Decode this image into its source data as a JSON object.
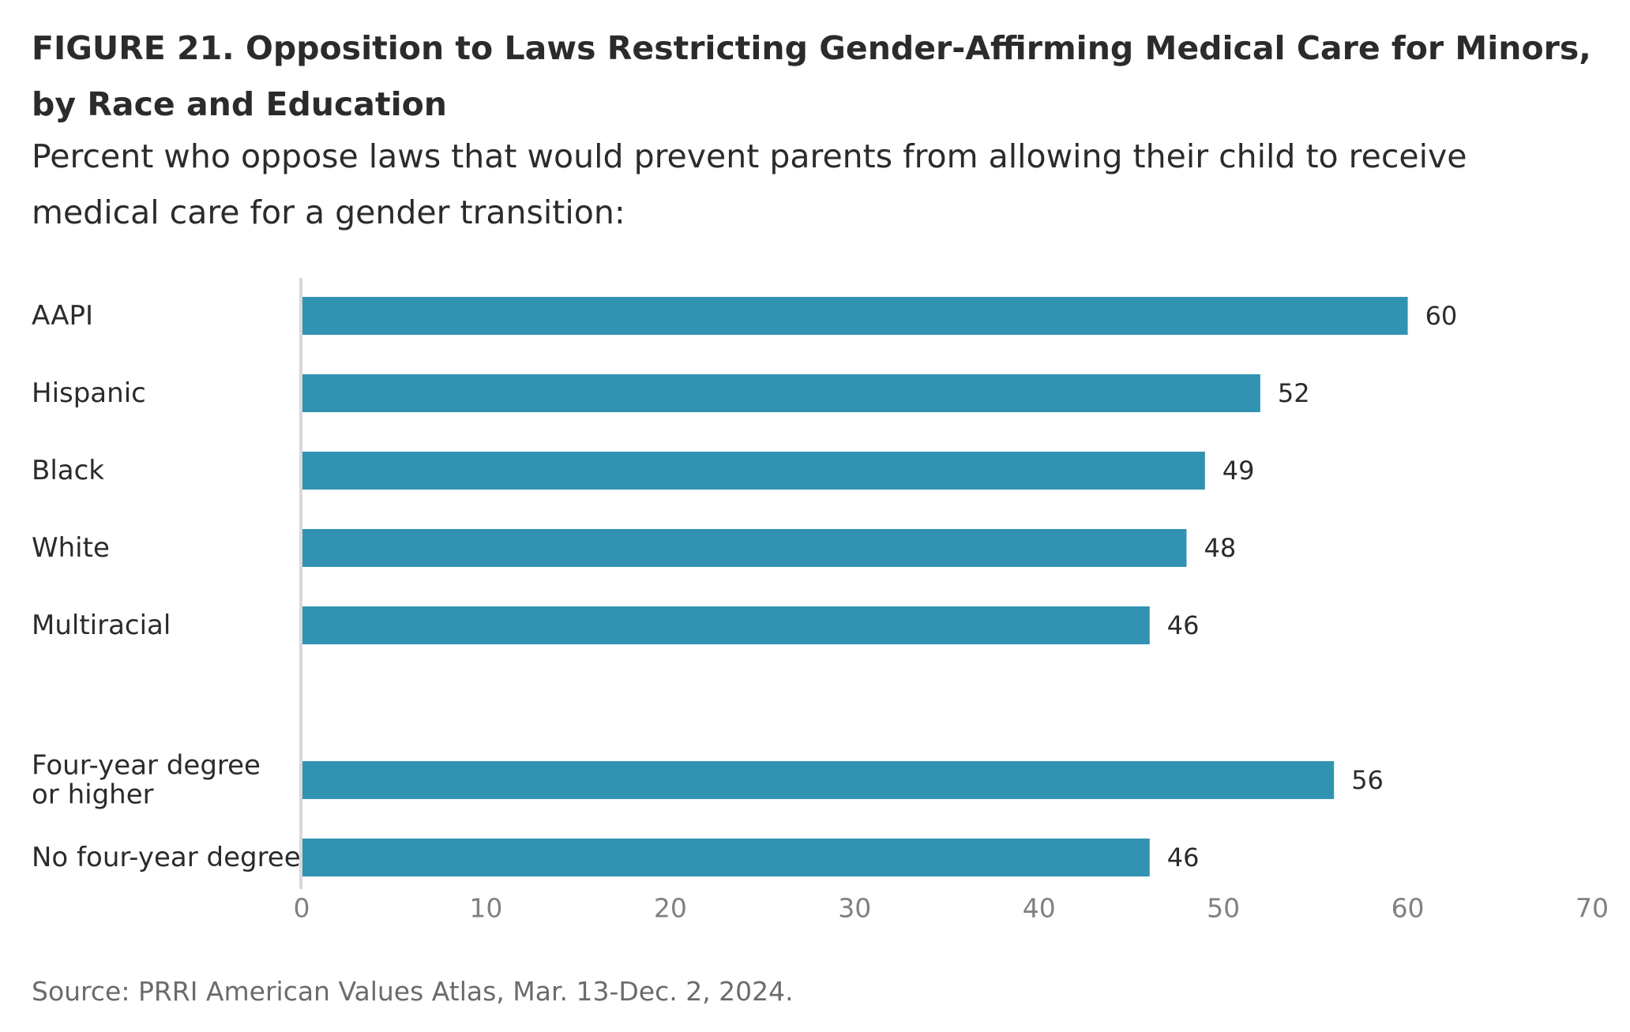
{
  "figure": {
    "title": "FIGURE 21. Opposition to Laws Restricting Gender-Affirming Medical Care for Minors, by Race and Education",
    "subtitle": "Percent who oppose laws that would prevent parents from allowing their child to receive medical care for a gender transition:",
    "source": "Source: PRRI American Values Atlas, Mar. 13-Dec. 2, 2024."
  },
  "colors": {
    "bar": "#3193b1",
    "axis_line": "#d9d9d9",
    "tick_label": "#808080",
    "label": "#2b2b2b"
  },
  "chart_data": {
    "type": "bar",
    "orientation": "horizontal",
    "categories": [
      [
        "AAPI"
      ],
      [
        "Hispanic"
      ],
      [
        "Black"
      ],
      [
        "White"
      ],
      [
        "Multiracial"
      ],
      [
        "Four-year degree",
        "or higher"
      ],
      [
        "No four-year degree"
      ]
    ],
    "values": [
      60,
      52,
      49,
      48,
      46,
      56,
      46
    ],
    "data_labels": [
      "60",
      "52",
      "49",
      "48",
      "46",
      "56",
      "46"
    ],
    "groups": [
      "race",
      "race",
      "race",
      "race",
      "race",
      "education",
      "education"
    ],
    "xlim": [
      0,
      70
    ],
    "xticks": [
      0,
      10,
      20,
      30,
      40,
      50,
      60,
      70
    ],
    "xlabel": "",
    "ylabel": "",
    "grid": false,
    "legend": "none"
  }
}
